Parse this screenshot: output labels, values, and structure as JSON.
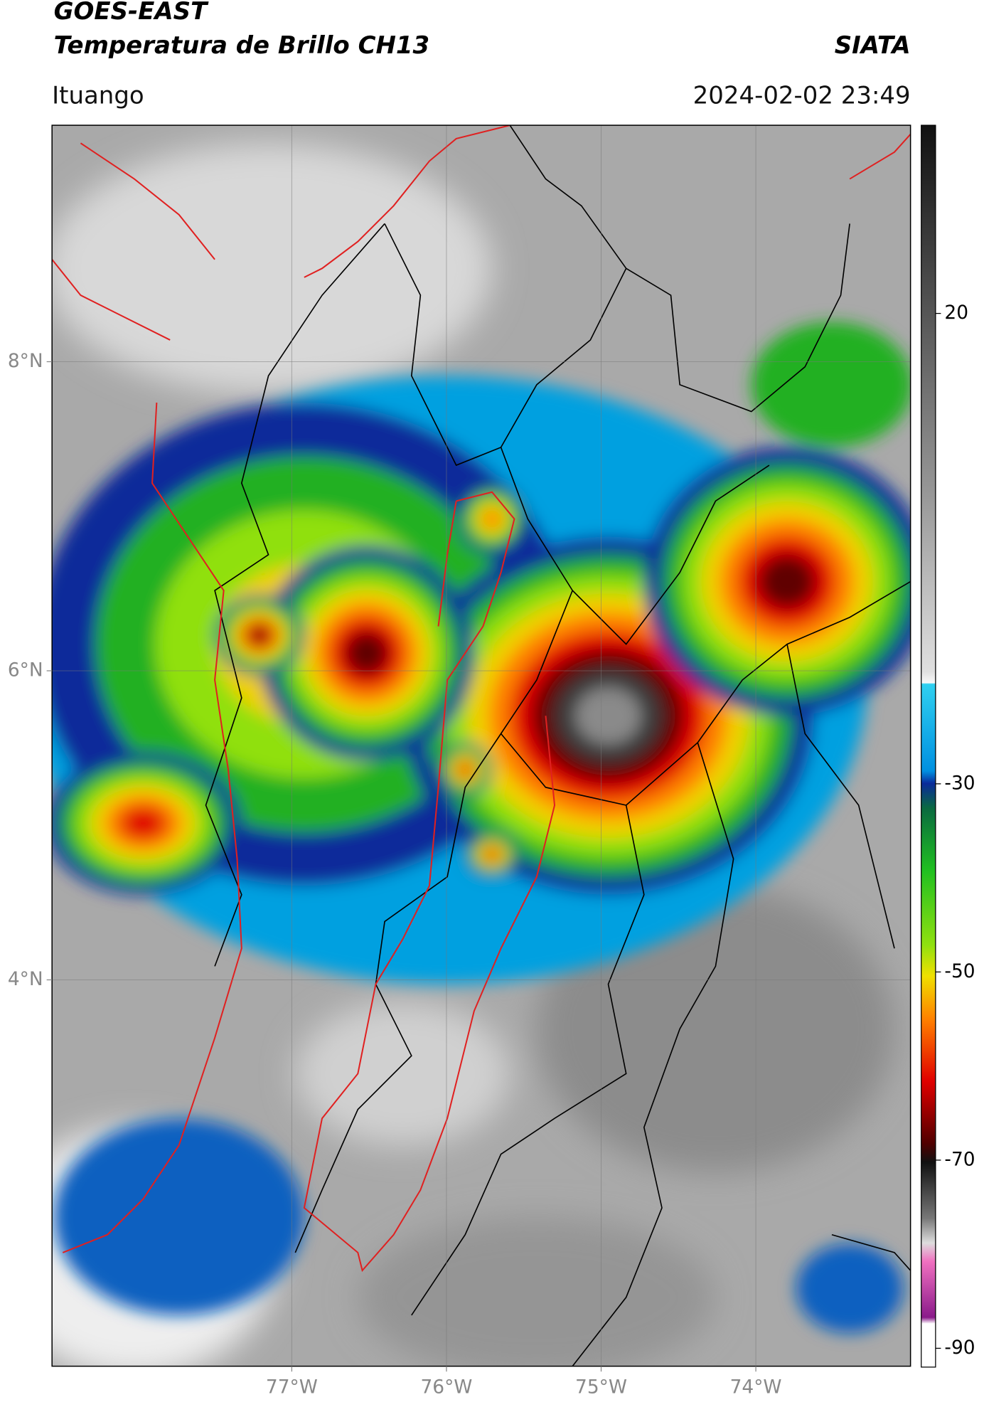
{
  "header": {
    "satellite": "GOES-EAST",
    "product": "Temperatura de Brillo CH13",
    "source": "SIATA",
    "location": "Ituango",
    "timestamp": "2024-02-02 23:49"
  },
  "map": {
    "xlim": [
      -78.55,
      -73.0
    ],
    "ylim": [
      1.5,
      9.53
    ],
    "xticks": [
      {
        "value": -77,
        "label": "77°W"
      },
      {
        "value": -76,
        "label": "76°W"
      },
      {
        "value": -75,
        "label": "75°W"
      },
      {
        "value": -74,
        "label": "74°W"
      }
    ],
    "yticks": [
      {
        "value": 4,
        "label": "4°N"
      },
      {
        "value": 6,
        "label": "6°N"
      },
      {
        "value": 8,
        "label": "8°N"
      }
    ],
    "grid": true
  },
  "colorbar": {
    "clim": [
      -92,
      40
    ],
    "ticks": [
      20,
      -30,
      -50,
      -70,
      -90
    ]
  }
}
